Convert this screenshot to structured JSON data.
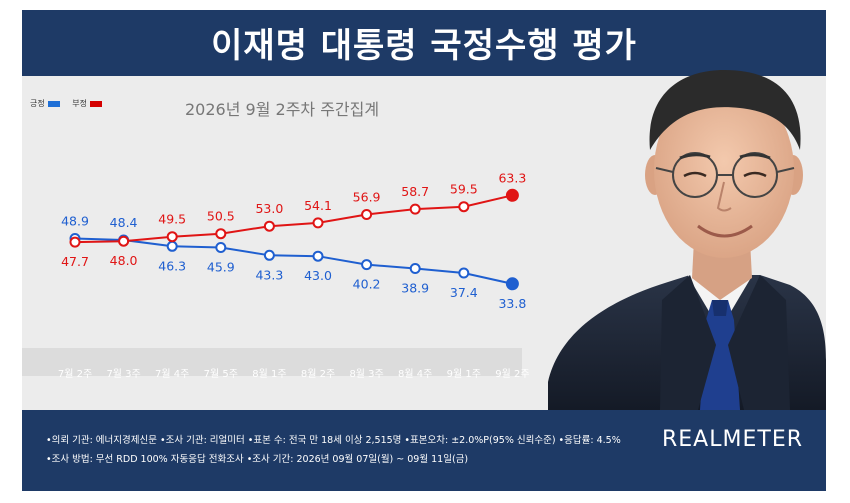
{
  "title": "이재명 대통령 국정수행 평가",
  "subtitle": "2026년 9월 2주차 주간집계",
  "legend": [
    {
      "label": "긍정",
      "color": "#1f6fd6"
    },
    {
      "label": "부정",
      "color": "#d40000"
    }
  ],
  "chart_data": {
    "type": "line",
    "categories": [
      "7월 2주",
      "7월 3주",
      "7월 4주",
      "7월 5주",
      "8월 1주",
      "8월 2주",
      "8월 3주",
      "8월 4주",
      "9월 1주",
      "9월 2주"
    ],
    "series": [
      {
        "name": "긍정",
        "color": "#1f5fd0",
        "values": [
          48.9,
          48.4,
          46.3,
          45.9,
          43.3,
          43.0,
          40.2,
          38.9,
          37.4,
          33.8
        ]
      },
      {
        "name": "부정",
        "color": "#e01515",
        "values": [
          47.7,
          48.0,
          49.5,
          50.5,
          53.0,
          54.1,
          56.9,
          58.7,
          59.5,
          63.3
        ]
      }
    ],
    "xlabel": "",
    "ylabel": "",
    "grid": false,
    "legend_position": "top-left"
  },
  "footer": {
    "line1": "•의뢰 기관: 에너지경제신문 •조사 기관: 리얼미터 •표본 수: 전국 만 18세 이상 2,515명 •표본오차: ±2.0%P(95% 신뢰수준) •응답률: 4.5%",
    "line2": "•조사 방법: 무선 RDD 100% 자동응답 전화조사 •조사 기간: 2026년 09월 07일(월) ~ 09월 11일(금)"
  },
  "logo": "REALMETER",
  "photo_icon": "person-portrait-icon"
}
